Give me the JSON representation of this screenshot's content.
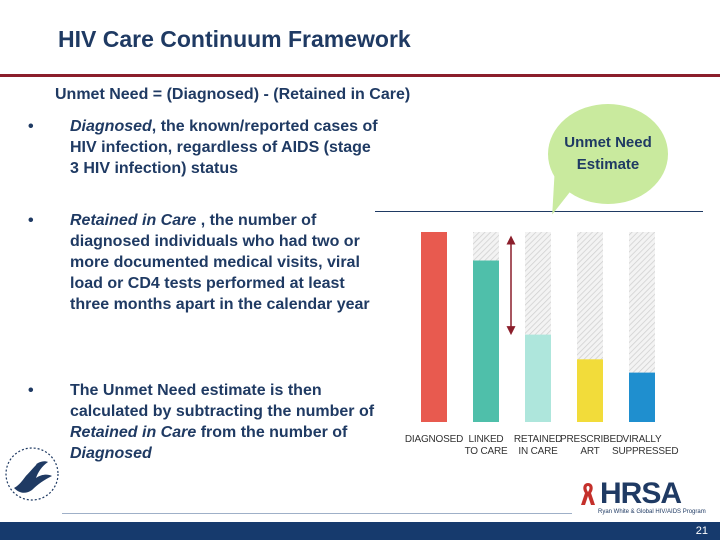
{
  "slide": {
    "title": "HIV Care Continuum Framework",
    "subtitle": "Unmet Need = (Diagnosed) - (Retained in Care)",
    "page_number": "21"
  },
  "bullets": [
    {
      "em": "Diagnosed",
      "text": ", the known/reported cases of HIV infection, regardless of AIDS (stage 3 HIV infection) status"
    },
    {
      "em": "Retained in Care",
      "text": " , the number of diagnosed individuals who had two or more documented medical visits, viral load or CD4 tests performed at least three months apart in the calendar year"
    },
    {
      "pre": "The Unmet Need estimate is then calculated by subtracting the number of ",
      "em1": "Retained in Care",
      "mid": " from the number of ",
      "em2": "Diagnosed"
    }
  ],
  "callout": {
    "text": "Unmet Need Estimate"
  },
  "chart_data": {
    "type": "bar",
    "categories": [
      "DIAGNOSED",
      "LINKED TO CARE",
      "RETAINED IN CARE",
      "PRESCRIBED ART",
      "VIRALLY SUPPRESSED"
    ],
    "category_lines": [
      [
        "DIAGNOSED"
      ],
      [
        "LINKED",
        "TO CARE"
      ],
      [
        "RETAINED",
        "IN CARE"
      ],
      [
        "PRESCRIBED",
        "ART"
      ],
      [
        "VIRALLY",
        "SUPPRESSED"
      ]
    ],
    "values": [
      100,
      85,
      46,
      33,
      26
    ],
    "colors": [
      "#e85a4f",
      "#4fbfaa",
      "#aee6dc",
      "#f2dc3a",
      "#1f8fcf"
    ],
    "ylim": [
      0,
      100
    ],
    "annotation": "Unmet Need Estimate"
  },
  "logos": {
    "hrsa_word": "HRSA",
    "hrsa_sub": "Ryan White & Global HIV/AIDS Program"
  }
}
